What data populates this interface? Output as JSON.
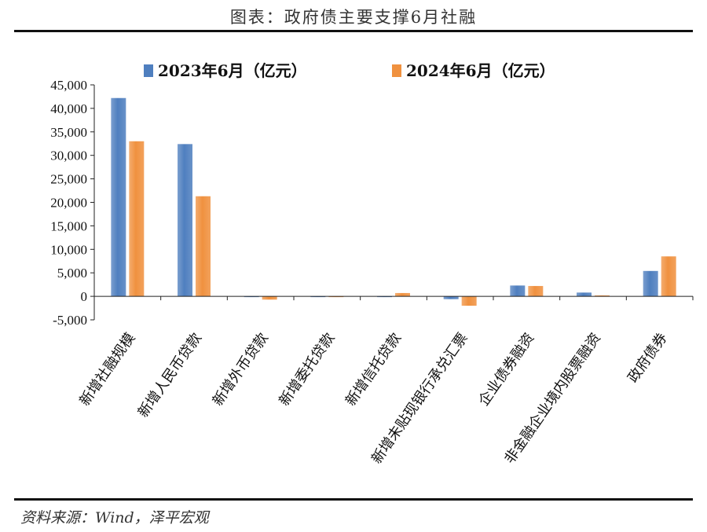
{
  "header": {
    "title": "图表：政府债主要支撑6月社融"
  },
  "footer": {
    "source": "资料来源：Wind，泽平宏观"
  },
  "chart_data": {
    "type": "bar",
    "categories": [
      "新增社融规模",
      "新增人民币贷款",
      "新增外币贷款",
      "新增委托贷款",
      "新增信托贷款",
      "新增未贴现银行承兑汇票",
      "企业债券融资",
      "非金融企业境内股票融资",
      "政府债券"
    ],
    "series": [
      {
        "name": "2023年6月（亿元）",
        "color": "#4f7fbf",
        "values": [
          42200,
          32400,
          -100,
          -50,
          -150,
          -600,
          2300,
          800,
          5400
        ]
      },
      {
        "name": "2024年6月（亿元）",
        "color": "#f0913f",
        "values": [
          33000,
          21300,
          -700,
          -30,
          700,
          -2000,
          2200,
          200,
          8500
        ]
      }
    ],
    "yticks": [
      45000,
      40000,
      35000,
      30000,
      25000,
      20000,
      15000,
      10000,
      5000,
      0,
      -5000
    ],
    "ytick_labels": [
      "45,000",
      "40,000",
      "35,000",
      "30,000",
      "25,000",
      "20,000",
      "15,000",
      "10,000",
      "5,000",
      "0",
      "-5,000"
    ],
    "ylim": [
      -5000,
      45000
    ],
    "legend_position": "top",
    "grid": false
  }
}
